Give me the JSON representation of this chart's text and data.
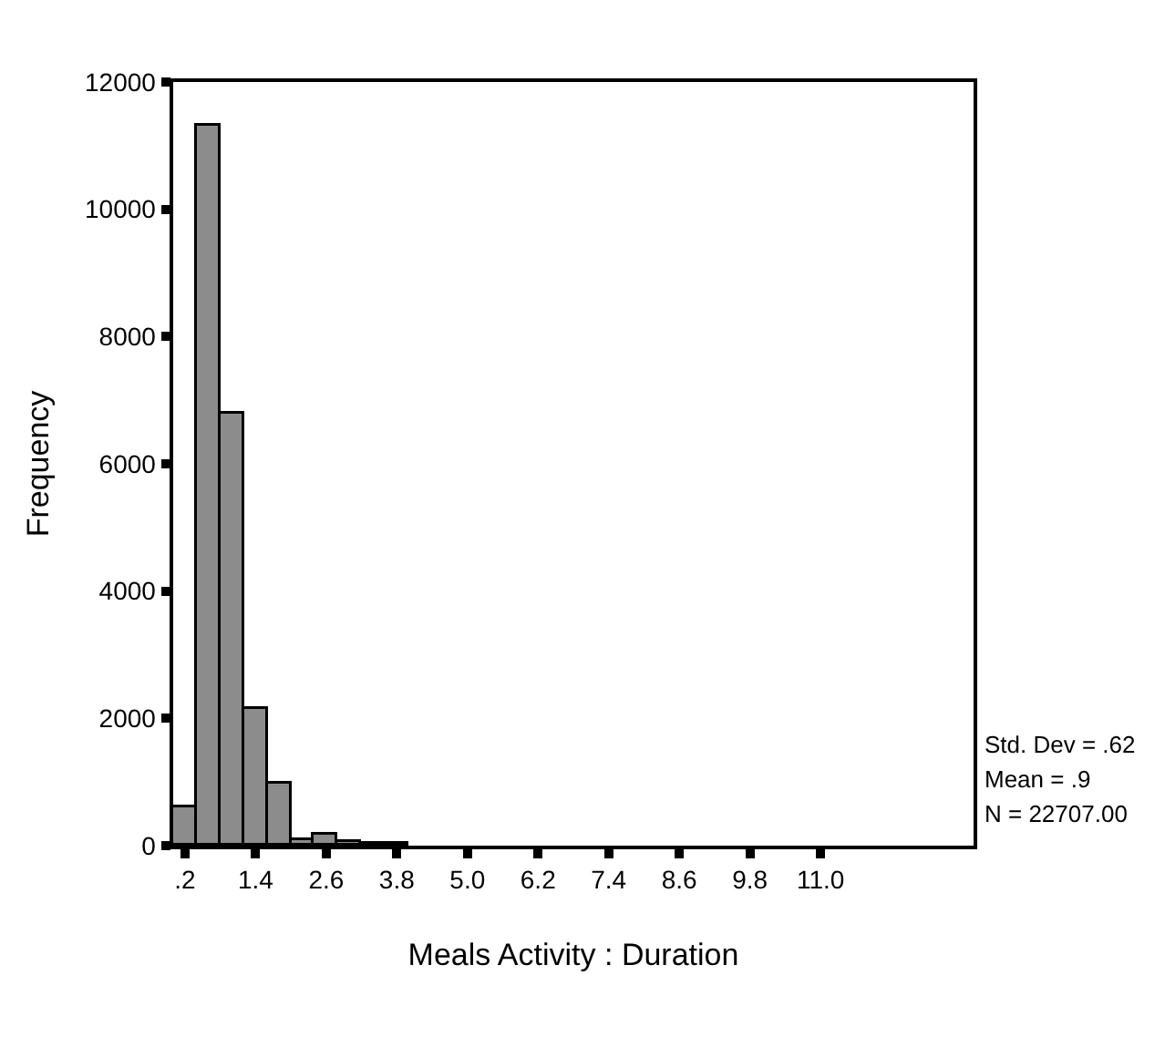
{
  "chart_data": {
    "type": "histogram",
    "xlabel": "Meals Activity : Duration",
    "ylabel": "Frequency",
    "bins": [
      0,
      0.4,
      0.8,
      1.2,
      1.6,
      2.0,
      2.4,
      2.8,
      3.2,
      3.6,
      4.0
    ],
    "values": [
      600,
      11300,
      6800,
      2150,
      980,
      100,
      180,
      60,
      20,
      20
    ],
    "color": "#8c8c8c",
    "xlim": [
      0,
      13.6
    ],
    "xticks": [
      {
        "value": 0.2,
        "label": ".2"
      },
      1.4,
      2.6,
      3.8,
      {
        "value": 5.0,
        "label": "5.0"
      },
      6.2,
      7.4,
      8.6,
      9.8,
      {
        "value": 11.0,
        "label": "11.0"
      }
    ],
    "ylim": [
      0,
      12000
    ],
    "yticks": [
      0,
      2000,
      4000,
      6000,
      8000,
      10000,
      12000
    ],
    "annotations": [
      "Std. Dev = .62",
      "Mean = .9",
      "N = 22707.00"
    ]
  }
}
